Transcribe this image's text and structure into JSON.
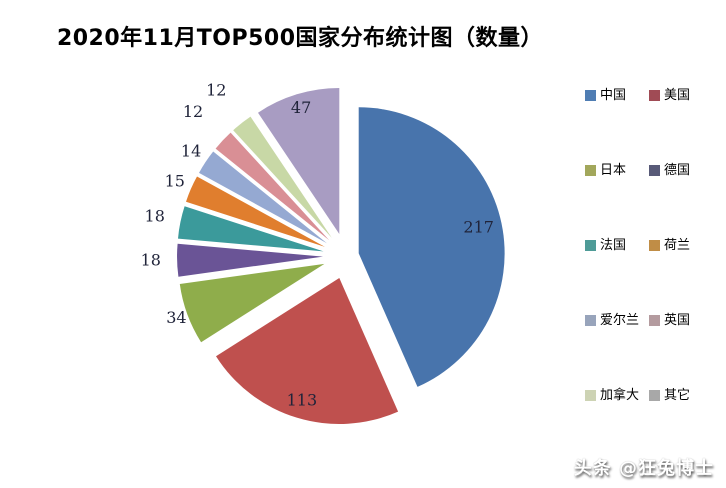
{
  "title": "2020年11月TOP500国家分布统计图（数量）",
  "watermark": "头条 @狂兔博士",
  "chart_data": {
    "type": "pie",
    "title": "2020年11月TOP500国家分布统计图（数量）",
    "total": 500,
    "start_angle_deg": 0,
    "direction": "clockwise",
    "exploded": true,
    "legend_position": "right",
    "slices": [
      {
        "id": "china",
        "label": "中国",
        "value": 217,
        "color": "#4874AC"
      },
      {
        "id": "usa",
        "label": "美国",
        "value": 113,
        "color": "#BF504E"
      },
      {
        "id": "japan",
        "label": "日本",
        "value": 34,
        "color": "#8FAD4B"
      },
      {
        "id": "germany",
        "label": "德国",
        "value": 18,
        "color": "#6A5496"
      },
      {
        "id": "france",
        "label": "法国",
        "value": 18,
        "color": "#3B9A9B"
      },
      {
        "id": "netherlands",
        "label": "荷兰",
        "value": 15,
        "color": "#E07E2E"
      },
      {
        "id": "ireland",
        "label": "爱尔兰",
        "value": 14,
        "color": "#95A9D2"
      },
      {
        "id": "uk",
        "label": "英国",
        "value": 12,
        "color": "#D98F95"
      },
      {
        "id": "canada",
        "label": "加拿大",
        "value": 12,
        "color": "#C8D8A6"
      },
      {
        "id": "other",
        "label": "其它",
        "value": 47,
        "color": "#A89CC2"
      }
    ]
  },
  "legend": {
    "items": [
      {
        "id": "china",
        "label": "中国",
        "swatch_color": "#4F7DB3"
      },
      {
        "id": "usa",
        "label": "美国",
        "swatch_color": "#A04B55"
      },
      {
        "id": "japan",
        "label": "日本",
        "swatch_color": "#A2A75B"
      },
      {
        "id": "germany",
        "label": "德国",
        "swatch_color": "#585A78"
      },
      {
        "id": "france",
        "label": "法国",
        "swatch_color": "#4E9B97"
      },
      {
        "id": "netherlands",
        "label": "荷兰",
        "swatch_color": "#C08D46"
      },
      {
        "id": "ireland",
        "label": "爱尔兰",
        "swatch_color": "#98A4BB"
      },
      {
        "id": "uk",
        "label": "英国",
        "swatch_color": "#B49B9F"
      },
      {
        "id": "canada",
        "label": "加拿大",
        "swatch_color": "#CDD3B4"
      },
      {
        "id": "other",
        "label": "其它",
        "swatch_color": "#A8A8A8"
      }
    ]
  }
}
